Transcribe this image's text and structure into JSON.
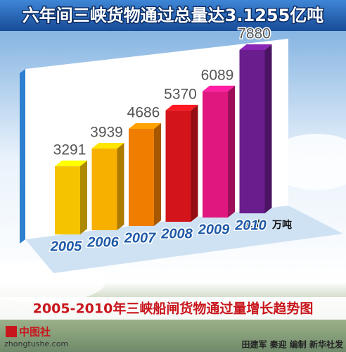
{
  "header": {
    "title": "六年间三峡货物通过总量达3.1255亿吨"
  },
  "chart_data": {
    "type": "bar",
    "categories": [
      "2005",
      "2006",
      "2007",
      "2008",
      "2009",
      "2010"
    ],
    "values": [
      3291,
      3939,
      4686,
      5370,
      6089,
      7880
    ],
    "colors": [
      "#f5c400",
      "#f7b000",
      "#ef7d00",
      "#d4141b",
      "#e0177f",
      "#6a1d8c"
    ],
    "unit_label": "单位：万吨",
    "subtitle": "2005-2010年三峡船闸货物通过量增长趋势图"
  },
  "footer": {
    "logo": "中图社",
    "site": "zhongtushe.com",
    "credit": "田建军 秦迎 编制 新华社发"
  }
}
